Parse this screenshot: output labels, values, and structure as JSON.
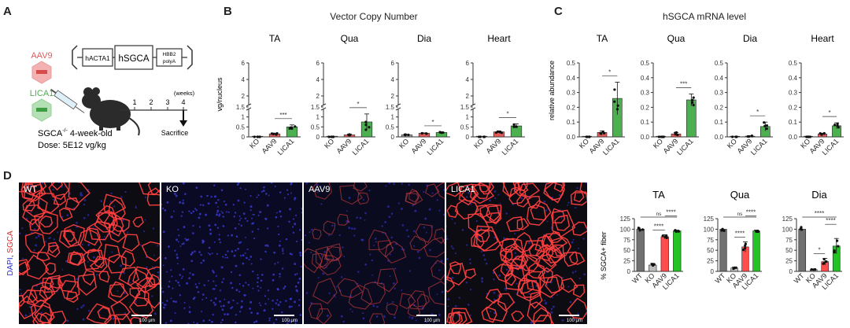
{
  "panels": {
    "A": "A",
    "B": "B",
    "C": "C",
    "D": "D"
  },
  "panelA": {
    "construct": {
      "promoter": "hACTA1",
      "gene": "hSGCA",
      "polyA_top": "HBB2",
      "polyA_bot": "polyA"
    },
    "vectors": [
      "AAV9",
      "LICA1"
    ],
    "timeline": {
      "ticks": [
        "1",
        "2",
        "3",
        "4"
      ],
      "unit": "(weeks)",
      "endpoint": "Sacrifice"
    },
    "mouse_label_prefix": "SGCA",
    "mouse_label_sup": "-/-",
    "mouse_label_suffix": " 4-week-old",
    "dose": "Dose: 5E12 vg/kg",
    "colors": {
      "aav9": "#e05a5a",
      "lica1": "#4caf50"
    }
  },
  "panelB": {
    "title": "Vector Copy Number",
    "ylabel": "vg/nucleus",
    "y_ticks": [
      "0",
      "0.5",
      "1",
      "1.5",
      "2",
      "4",
      "6"
    ]
  },
  "panelC": {
    "title": "hSGCA mRNA level",
    "ylabel": "relative abundance",
    "y_ticks": [
      "0.0",
      "0.1",
      "0.2",
      "0.3",
      "0.4",
      "0.5"
    ]
  },
  "panelD": {
    "images": [
      "WT",
      "KO",
      "AAV9",
      "LICA1"
    ],
    "side_label_dapi": "DAPI",
    "side_label_sep": ", ",
    "side_label_sgca": "SGCA",
    "scale_label": "100 μm",
    "ylabel": "% SGCA+ fiber",
    "y_ticks": [
      "0",
      "25",
      "50",
      "75",
      "100",
      "125"
    ]
  },
  "chart_data": [
    {
      "type": "bar",
      "title": "TA",
      "panel": "B",
      "categories": [
        "KO",
        "AAV9",
        "LICA1"
      ],
      "values": [
        0.0,
        0.15,
        0.5
      ],
      "errors": [
        0.0,
        0.04,
        0.1
      ],
      "ylim": [
        0,
        6
      ],
      "significance": [
        {
          "pair": [
            "AAV9",
            "LICA1"
          ],
          "label": "***"
        }
      ],
      "colors": [
        "#9e9e9e",
        "#e05a5a",
        "#4caf50"
      ]
    },
    {
      "type": "bar",
      "title": "Qua",
      "panel": "B",
      "categories": [
        "KO",
        "AAV9",
        "LICA1"
      ],
      "values": [
        0.0,
        0.1,
        0.75
      ],
      "errors": [
        0.0,
        0.04,
        0.4
      ],
      "ylim": [
        0,
        6
      ],
      "significance": [
        {
          "pair": [
            "AAV9",
            "LICA1"
          ],
          "label": "*"
        }
      ],
      "colors": [
        "#9e9e9e",
        "#e05a5a",
        "#4caf50"
      ]
    },
    {
      "type": "bar",
      "title": "Dia",
      "panel": "B",
      "categories": [
        "KO",
        "AAV9",
        "LICA1"
      ],
      "values": [
        0.1,
        0.18,
        0.22
      ],
      "errors": [
        0.02,
        0.02,
        0.02
      ],
      "ylim": [
        0,
        6
      ],
      "significance": [
        {
          "pair": [
            "AAV9",
            "LICA1"
          ],
          "label": "*"
        }
      ],
      "colors": [
        "#9e9e9e",
        "#e05a5a",
        "#4caf50"
      ]
    },
    {
      "type": "bar",
      "title": "Heart",
      "panel": "B",
      "categories": [
        "KO",
        "AAV9",
        "LICA1"
      ],
      "values": [
        0.0,
        0.25,
        0.55
      ],
      "errors": [
        0.0,
        0.05,
        0.1
      ],
      "ylim": [
        0,
        6
      ],
      "significance": [
        {
          "pair": [
            "AAV9",
            "LICA1"
          ],
          "label": "*"
        }
      ],
      "colors": [
        "#9e9e9e",
        "#e05a5a",
        "#4caf50"
      ]
    },
    {
      "type": "bar",
      "title": "TA",
      "panel": "C",
      "categories": [
        "KO",
        "AAV9",
        "LICA1"
      ],
      "values": [
        0.0,
        0.03,
        0.26
      ],
      "errors": [
        0.0,
        0.01,
        0.11
      ],
      "ylim": [
        0,
        0.5
      ],
      "significance": [
        {
          "pair": [
            "AAV9",
            "LICA1"
          ],
          "label": "*"
        }
      ],
      "colors": [
        "#9e9e9e",
        "#e05a5a",
        "#4caf50"
      ]
    },
    {
      "type": "bar",
      "title": "Qua",
      "panel": "C",
      "categories": [
        "KO",
        "AAV9",
        "LICA1"
      ],
      "values": [
        0.0,
        0.02,
        0.25
      ],
      "errors": [
        0.0,
        0.01,
        0.04
      ],
      "ylim": [
        0,
        0.5
      ],
      "significance": [
        {
          "pair": [
            "AAV9",
            "LICA1"
          ],
          "label": "***"
        }
      ],
      "colors": [
        "#9e9e9e",
        "#e05a5a",
        "#4caf50"
      ]
    },
    {
      "type": "bar",
      "title": "Dia",
      "panel": "C",
      "categories": [
        "KO",
        "AAV9",
        "LICA1"
      ],
      "values": [
        0.0,
        0.005,
        0.07
      ],
      "errors": [
        0.0,
        0.003,
        0.03
      ],
      "ylim": [
        0,
        0.5
      ],
      "significance": [
        {
          "pair": [
            "AAV9",
            "LICA1"
          ],
          "label": "*"
        }
      ],
      "colors": [
        "#9e9e9e",
        "#e05a5a",
        "#4caf50"
      ]
    },
    {
      "type": "bar",
      "title": "Heart",
      "panel": "C",
      "categories": [
        "KO",
        "AAV9",
        "LICA1"
      ],
      "values": [
        0.0,
        0.02,
        0.075
      ],
      "errors": [
        0.0,
        0.005,
        0.02
      ],
      "ylim": [
        0,
        0.5
      ],
      "significance": [
        {
          "pair": [
            "AAV9",
            "LICA1"
          ],
          "label": "*"
        }
      ],
      "colors": [
        "#9e9e9e",
        "#e05a5a",
        "#4caf50"
      ]
    },
    {
      "type": "bar",
      "title": "TA",
      "panel": "D",
      "categories": [
        "WT",
        "KO",
        "AAV9",
        "LICA1"
      ],
      "values": [
        100,
        15,
        82,
        96
      ],
      "errors": [
        0,
        4,
        5,
        2
      ],
      "ylim": [
        0,
        125
      ],
      "significance": [
        {
          "pair": [
            "WT",
            "LICA1"
          ],
          "label": "ns"
        },
        {
          "pair": [
            "KO",
            "AAV9"
          ],
          "label": "****"
        },
        {
          "pair": [
            "AAV9",
            "LICA1"
          ],
          "label": "****"
        }
      ],
      "colors": [
        "#707070",
        "#bdbdbd",
        "#ff4d4d",
        "#22c322"
      ]
    },
    {
      "type": "bar",
      "title": "Qua",
      "panel": "D",
      "categories": [
        "WT",
        "KO",
        "AAV9",
        "LICA1"
      ],
      "values": [
        100,
        8,
        58,
        96
      ],
      "errors": [
        0,
        2,
        12,
        2
      ],
      "ylim": [
        0,
        125
      ],
      "significance": [
        {
          "pair": [
            "WT",
            "LICA1"
          ],
          "label": "ns"
        },
        {
          "pair": [
            "KO",
            "AAV9"
          ],
          "label": "****"
        },
        {
          "pair": [
            "AAV9",
            "LICA1"
          ],
          "label": "****"
        }
      ],
      "colors": [
        "#707070",
        "#bdbdbd",
        "#ff4d4d",
        "#22c322"
      ]
    },
    {
      "type": "bar",
      "title": "Dia",
      "panel": "D",
      "categories": [
        "WT",
        "KO",
        "AAV9",
        "LICA1"
      ],
      "values": [
        100,
        4,
        23,
        60
      ],
      "errors": [
        0,
        1,
        8,
        18
      ],
      "ylim": [
        0,
        125
      ],
      "significance": [
        {
          "pair": [
            "WT",
            "LICA1"
          ],
          "label": "****"
        },
        {
          "pair": [
            "KO",
            "AAV9"
          ],
          "label": "*"
        },
        {
          "pair": [
            "AAV9",
            "LICA1"
          ],
          "label": "****"
        }
      ],
      "colors": [
        "#707070",
        "#bdbdbd",
        "#ff4d4d",
        "#22c322"
      ]
    }
  ]
}
